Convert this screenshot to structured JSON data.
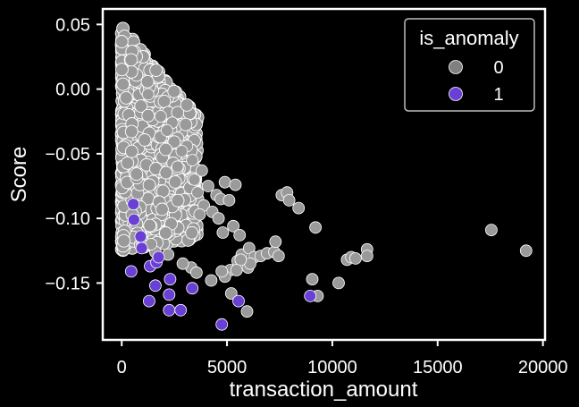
{
  "chart_data": {
    "type": "scatter",
    "title": "",
    "xlabel": "transaction_amount",
    "ylabel": "Score",
    "xlim": [
      -900,
      20100
    ],
    "ylim": [
      -0.194,
      0.062
    ],
    "xticks": [
      0,
      5000,
      10000,
      15000,
      20000
    ],
    "xtick_labels": [
      "0",
      "5000",
      "10000",
      "15000",
      "20000"
    ],
    "yticks": [
      0.05,
      0.0,
      -0.05,
      -0.1,
      -0.15
    ],
    "ytick_labels": [
      "0.05",
      "0.00",
      "−0.05",
      "−0.10",
      "−0.15"
    ],
    "grid": false,
    "legend_position": "top-right",
    "legend": {
      "title": "is_anomaly",
      "entries": [
        {
          "label": "0",
          "color": "#808080"
        },
        {
          "label": "1",
          "color": "#6a3fd6"
        }
      ]
    },
    "series": [
      {
        "name": "0",
        "color": "#9a9a9a",
        "x": [
          1250,
          1850,
          2400,
          3100,
          2150,
          2850,
          3350,
          2650,
          3800,
          3450,
          4100,
          3600,
          4500,
          3900,
          4300,
          3700,
          4700,
          4900,
          5400,
          5100,
          4600,
          4800,
          5300,
          5600,
          5700,
          5500,
          6050,
          6300,
          6600,
          6900,
          7250,
          7450,
          7600,
          7300,
          7850,
          7950,
          8400,
          9200,
          9050,
          9300,
          10300,
          10700,
          10900,
          11100,
          11650,
          11650,
          17550,
          19200,
          5150,
          5200,
          4900,
          6000,
          5950,
          4750,
          6100,
          5650,
          5450,
          4250,
          3300,
          3550,
          2200,
          2900,
          1600,
          1400
        ],
        "y": [
          -0.004,
          -0.021,
          -0.026,
          -0.044,
          -0.032,
          -0.048,
          -0.055,
          -0.06,
          -0.063,
          -0.07,
          -0.075,
          -0.08,
          -0.082,
          -0.09,
          -0.095,
          -0.097,
          -0.085,
          -0.072,
          -0.074,
          -0.086,
          -0.1,
          -0.111,
          -0.106,
          -0.113,
          -0.128,
          -0.133,
          -0.123,
          -0.13,
          -0.129,
          -0.127,
          -0.126,
          -0.129,
          -0.082,
          -0.118,
          -0.08,
          -0.086,
          -0.092,
          -0.107,
          -0.147,
          -0.16,
          -0.15,
          -0.132,
          -0.13,
          -0.131,
          -0.124,
          -0.129,
          -0.109,
          -0.125,
          -0.14,
          -0.158,
          -0.145,
          -0.138,
          -0.172,
          -0.141,
          -0.135,
          -0.132,
          -0.14,
          -0.148,
          -0.138,
          -0.142,
          -0.128,
          -0.135,
          -0.126,
          -0.12
        ]
      },
      {
        "name": "1",
        "color": "#6a3fd6",
        "x": [
          550,
          580,
          450,
          900,
          950,
          1350,
          1300,
          1650,
          1750,
          1600,
          2300,
          2250,
          2250,
          2800,
          3350,
          4750,
          5550,
          8950
        ],
        "y": [
          -0.089,
          -0.101,
          -0.141,
          -0.114,
          -0.123,
          -0.137,
          -0.164,
          -0.134,
          -0.13,
          -0.152,
          -0.147,
          -0.159,
          -0.171,
          -0.171,
          -0.154,
          -0.182,
          -0.164,
          -0.16
        ]
      }
    ]
  }
}
